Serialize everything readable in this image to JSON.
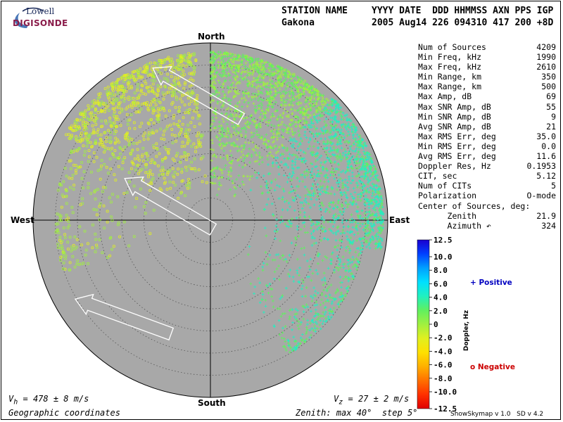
{
  "header": {
    "line1": {
      "station": "STATION NAME",
      "cols": "YYYY DATE  DDD HHMMSS AXN PPS IGP"
    },
    "line2": {
      "station": "Gakona",
      "cols": "2005 Aug14 226 094310 417 200 +8D"
    }
  },
  "logo": {
    "top": "Lowell",
    "bottom": "DIGISONDE"
  },
  "directions": {
    "north": "North",
    "south": "South",
    "east": "East",
    "west": "West"
  },
  "stats": [
    {
      "label": "Num of Sources",
      "value": "4209"
    },
    {
      "label": "Min Freq, kHz",
      "value": "1990"
    },
    {
      "label": "Max Freq, kHz",
      "value": "2610"
    },
    {
      "label": "Min Range, km",
      "value": "350"
    },
    {
      "label": "Max Range, km",
      "value": "500"
    },
    {
      "label": "Max Amp, dB",
      "value": "69"
    },
    {
      "label": "Max SNR Amp, dB",
      "value": "55"
    },
    {
      "label": "Min SNR Amp, dB",
      "value": "9"
    },
    {
      "label": "Avg SNR Amp, dB",
      "value": "21"
    },
    {
      "label": "Max RMS Err, deg",
      "value": "35.0"
    },
    {
      "label": "Min RMS Err, deg",
      "value": "0.0"
    },
    {
      "label": "Avg RMS Err, deg",
      "value": "11.6"
    },
    {
      "label": "Doppler Res, Hz",
      "value": "0.1953"
    },
    {
      "label": "CIT, sec",
      "value": "5.12"
    },
    {
      "label": "Num of CITs",
      "value": "5"
    },
    {
      "label": "Polarization",
      "value": "O-mode"
    },
    {
      "label": "Center of Sources, deg:",
      "value": ""
    },
    {
      "label": "      Zenith",
      "value": "21.9"
    },
    {
      "label": "      Azimuth ↶",
      "value": "324"
    }
  ],
  "colorbar": {
    "ticks": [
      "12.5",
      "10.0",
      "8.0",
      "6.0",
      "4.0",
      "2.0",
      "0",
      "-2.0",
      "-4.0",
      "-6.0",
      "-8.0",
      "-10.0",
      "-12.5"
    ],
    "axis_label": "Doppler, Hz",
    "colors": [
      "#1a00d0",
      "#0040ff",
      "#00a0ff",
      "#00e0ff",
      "#20f0c0",
      "#60f060",
      "#a0f040",
      "#e0f020",
      "#ffe000",
      "#ffb000",
      "#ff7000",
      "#ff3000",
      "#e00000"
    ]
  },
  "legend": {
    "positive": "+ Positive",
    "negative": "o Negative",
    "positive_color": "#0000c0",
    "negative_color": "#cc0000"
  },
  "footer": {
    "vh": "V",
    "vh_sub": "h",
    "vh_rest": " = 478 ± 8 m/s",
    "vz": "V",
    "vz_sub": "z",
    "vz_rest": " = 27 ± 2 m/s",
    "coords": "Geographic coordinates",
    "zenith": "Zenith: max 40°  step 5°",
    "version": "ShowSkymap v 1.0   SD v 4.2"
  },
  "chart_data": {
    "type": "scatter",
    "projection": "polar skymap",
    "zenith_max_deg": 40,
    "zenith_step_deg": 5,
    "background": "#a8a8a8",
    "num_sources": 4209,
    "doppler_range_hz": [
      -12.5,
      12.5
    ],
    "center_of_sources": {
      "zenith_deg": 21.9,
      "azimuth_deg": 324
    },
    "velocity": {
      "vh_ms": 478,
      "vh_err": 8,
      "vz_ms": 27,
      "vz_err": 2
    },
    "clusters": [
      {
        "marker": "o",
        "doppler_hz": -1.5,
        "azimuth_deg": [
          300,
          355
        ],
        "zenith_deg": [
          5,
          38
        ],
        "approx_count": 900
      },
      {
        "marker": "o",
        "doppler_hz": -0.5,
        "azimuth_deg": [
          250,
          300
        ],
        "zenith_deg": [
          10,
          35
        ],
        "approx_count": 200
      },
      {
        "marker": "+",
        "doppler_hz": 1.0,
        "azimuth_deg": [
          0,
          45
        ],
        "zenith_deg": [
          5,
          38
        ],
        "approx_count": 1400
      },
      {
        "marker": "+",
        "doppler_hz": 3.5,
        "azimuth_deg": [
          45,
          100
        ],
        "zenith_deg": [
          10,
          39
        ],
        "approx_count": 1300
      },
      {
        "marker": "+",
        "doppler_hz": 3.0,
        "azimuth_deg": [
          100,
          150
        ],
        "zenith_deg": [
          10,
          35
        ],
        "approx_count": 400
      }
    ],
    "velocity_arrows": [
      {
        "direction_deg_from_north": 300,
        "location": "north"
      },
      {
        "direction_deg_from_north": 300,
        "location": "center"
      },
      {
        "direction_deg_from_north": 290,
        "location": "southwest"
      }
    ]
  }
}
